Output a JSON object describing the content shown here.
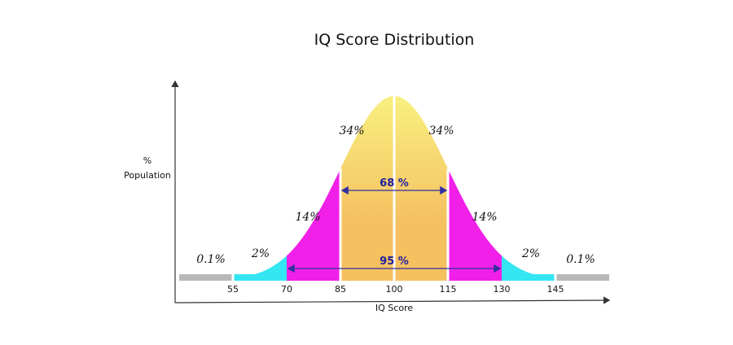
{
  "chart_data": {
    "type": "area",
    "title": "IQ Score Distribution",
    "xlabel": "IQ Score",
    "ylabel_lines": [
      "%",
      "Population"
    ],
    "x_ticks": [
      55,
      70,
      85,
      100,
      115,
      130,
      145
    ],
    "segments": [
      {
        "from": 40,
        "to": 55,
        "percent_label": "0.1%",
        "color": "#b8b8b8"
      },
      {
        "from": 55,
        "to": 70,
        "percent_label": "2%",
        "color": "#33e6f2"
      },
      {
        "from": 70,
        "to": 85,
        "percent_label": "14%",
        "color": "#f020e8"
      },
      {
        "from": 85,
        "to": 100,
        "percent_label": "34%",
        "color": "#f5c060"
      },
      {
        "from": 100,
        "to": 115,
        "percent_label": "34%",
        "color": "#f5c060"
      },
      {
        "from": 115,
        "to": 130,
        "percent_label": "14%",
        "color": "#f020e8"
      },
      {
        "from": 130,
        "to": 145,
        "percent_label": "2%",
        "color": "#33e6f2"
      },
      {
        "from": 145,
        "to": 160,
        "percent_label": "0.1%",
        "color": "#b8b8b8"
      }
    ],
    "range_annotations": [
      {
        "label": "68 %",
        "from": 85,
        "to": 115
      },
      {
        "label": "95 %",
        "from": 70,
        "to": 130
      }
    ],
    "colors": {
      "center_top": "#f8f080",
      "arrow": "#3030a0",
      "axis": "#333333"
    }
  }
}
